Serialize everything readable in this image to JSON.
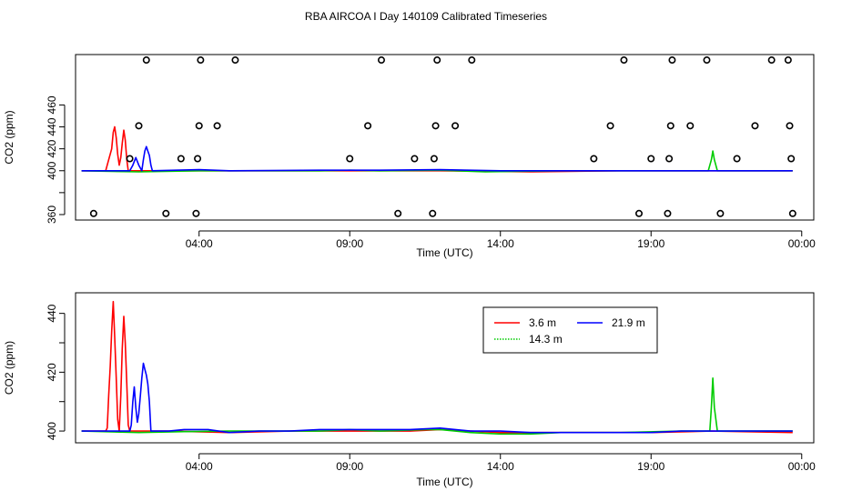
{
  "figure": {
    "title": "RBA AIRCOA I  Day 140109  Calibrated Timeseries"
  },
  "colors": {
    "3.6 m": "#ff0000",
    "14.3 m": "#00cc00",
    "21.9 m": "#0000ff",
    "flags": "#000000"
  },
  "chart_data": [
    {
      "type": "line",
      "title": "RBA AIRCOA I  Day 140109  Calibrated Timeseries",
      "xlabel": "Time (UTC)",
      "ylabel": "CO2 (ppm)",
      "x_unit": "hours since 00:00 UTC",
      "x_ticks": [
        4,
        9,
        14,
        19,
        24
      ],
      "x_tick_labels": [
        "04:00",
        "09:00",
        "14:00",
        "19:00",
        "00:00"
      ],
      "y_ticks": [
        360,
        380,
        400,
        420,
        440,
        460
      ],
      "y_tick_labels": [
        "360",
        "",
        "400",
        "420",
        "440",
        "460"
      ],
      "xlim": [
        -0.1,
        24.4
      ],
      "ylim": [
        355,
        506
      ],
      "legend": null,
      "series": [
        {
          "name": "3.6 m",
          "color": "#ff0000",
          "points": [
            [
              0.1,
              400
            ],
            [
              0.5,
              400
            ],
            [
              0.8,
              400
            ],
            [
              0.9,
              400
            ],
            [
              1.0,
              410
            ],
            [
              1.1,
              420
            ],
            [
              1.15,
              435
            ],
            [
              1.2,
              440
            ],
            [
              1.25,
              430
            ],
            [
              1.3,
              415
            ],
            [
              1.35,
              405
            ],
            [
              1.4,
              412
            ],
            [
              1.45,
              425
            ],
            [
              1.5,
              437
            ],
            [
              1.55,
              428
            ],
            [
              1.6,
              410
            ],
            [
              1.65,
              400
            ],
            [
              2.0,
              400
            ],
            [
              3.0,
              400
            ],
            [
              6.0,
              400
            ],
            [
              9.0,
              400
            ],
            [
              12.0,
              400
            ],
            [
              15.0,
              399
            ],
            [
              18.0,
              400
            ],
            [
              21.0,
              400
            ],
            [
              23.7,
              400
            ]
          ]
        },
        {
          "name": "14.3 m",
          "color": "#00cc00",
          "points": [
            [
              0.1,
              400
            ],
            [
              2.0,
              399
            ],
            [
              4.0,
              400
            ],
            [
              6.0,
              400
            ],
            [
              8.0,
              400
            ],
            [
              9.0,
              400.5
            ],
            [
              10.0,
              400
            ],
            [
              12.0,
              400.5
            ],
            [
              13.5,
              399
            ],
            [
              14.5,
              399.5
            ],
            [
              16.0,
              400
            ],
            [
              18.0,
              400
            ],
            [
              20.5,
              400
            ],
            [
              20.9,
              400
            ],
            [
              21.0,
              410
            ],
            [
              21.05,
              418
            ],
            [
              21.1,
              410
            ],
            [
              21.2,
              400
            ],
            [
              22.0,
              400
            ],
            [
              23.7,
              400
            ]
          ]
        },
        {
          "name": "21.9 m",
          "color": "#0000ff",
          "points": [
            [
              0.1,
              400
            ],
            [
              1.7,
              400
            ],
            [
              1.8,
              405
            ],
            [
              1.9,
              412
            ],
            [
              2.0,
              405
            ],
            [
              2.1,
              400
            ],
            [
              2.15,
              410
            ],
            [
              2.2,
              418
            ],
            [
              2.25,
              422
            ],
            [
              2.3,
              418
            ],
            [
              2.35,
              414
            ],
            [
              2.4,
              405
            ],
            [
              2.45,
              400
            ],
            [
              4.0,
              401
            ],
            [
              5.0,
              400
            ],
            [
              8.0,
              400.5
            ],
            [
              10.0,
              400.5
            ],
            [
              12.0,
              401
            ],
            [
              14.0,
              400
            ],
            [
              17.0,
              400
            ],
            [
              20.0,
              400
            ],
            [
              23.7,
              400
            ]
          ]
        }
      ],
      "annotations": "open circles (flagged/out-of-range points)",
      "flag_points": [
        [
          0.5,
          361
        ],
        [
          2.0,
          441
        ],
        [
          1.7,
          411
        ],
        [
          2.25,
          501
        ],
        [
          2.9,
          361
        ],
        [
          3.4,
          411
        ],
        [
          3.9,
          361
        ],
        [
          3.95,
          411
        ],
        [
          4.0,
          441
        ],
        [
          4.05,
          501
        ],
        [
          4.6,
          441
        ],
        [
          5.2,
          501
        ],
        [
          9.0,
          411
        ],
        [
          9.6,
          441
        ],
        [
          10.05,
          501
        ],
        [
          10.6,
          361
        ],
        [
          11.15,
          411
        ],
        [
          11.75,
          361
        ],
        [
          11.8,
          411
        ],
        [
          11.85,
          441
        ],
        [
          11.9,
          501
        ],
        [
          12.5,
          441
        ],
        [
          13.05,
          501
        ],
        [
          17.1,
          411
        ],
        [
          17.65,
          441
        ],
        [
          18.1,
          501
        ],
        [
          18.6,
          361
        ],
        [
          19.0,
          411
        ],
        [
          19.55,
          361
        ],
        [
          19.6,
          411
        ],
        [
          19.65,
          441
        ],
        [
          19.7,
          501
        ],
        [
          20.3,
          441
        ],
        [
          20.85,
          501
        ],
        [
          21.3,
          361
        ],
        [
          21.85,
          411
        ],
        [
          22.45,
          441
        ],
        [
          23.0,
          501
        ],
        [
          23.55,
          501
        ],
        [
          23.6,
          441
        ],
        [
          23.65,
          411
        ],
        [
          23.7,
          361
        ]
      ]
    },
    {
      "type": "line",
      "xlabel": "Time (UTC)",
      "ylabel": "CO2 (ppm)",
      "x_unit": "hours since 00:00 UTC",
      "x_ticks": [
        4,
        9,
        14,
        19,
        24
      ],
      "x_tick_labels": [
        "04:00",
        "09:00",
        "14:00",
        "19:00",
        "00:00"
      ],
      "y_ticks": [
        400,
        410,
        420,
        430,
        440
      ],
      "y_tick_labels": [
        "400",
        "",
        "420",
        "",
        "440"
      ],
      "xlim": [
        -0.1,
        24.4
      ],
      "ylim": [
        396,
        447
      ],
      "legend": {
        "placement": "top-right",
        "entries": [
          {
            "label": "3.6 m",
            "color": "#ff0000",
            "style": "solid"
          },
          {
            "label": "21.9 m",
            "color": "#0000ff",
            "style": "solid"
          },
          {
            "label": "14.3 m",
            "color": "#00cc00",
            "style": "dotted"
          }
        ]
      },
      "series": [
        {
          "name": "3.6 m",
          "color": "#ff0000",
          "points": [
            [
              0.1,
              400
            ],
            [
              0.5,
              400
            ],
            [
              0.9,
              400
            ],
            [
              0.95,
              401
            ],
            [
              1.0,
              412
            ],
            [
              1.05,
              422
            ],
            [
              1.1,
              434
            ],
            [
              1.15,
              444
            ],
            [
              1.2,
              432
            ],
            [
              1.25,
              418
            ],
            [
              1.3,
              404
            ],
            [
              1.35,
              400
            ],
            [
              1.4,
              412
            ],
            [
              1.45,
              428
            ],
            [
              1.5,
              439
            ],
            [
              1.55,
              430
            ],
            [
              1.6,
              416
            ],
            [
              1.65,
              402
            ],
            [
              1.7,
              400
            ],
            [
              2.0,
              400
            ],
            [
              3.0,
              400
            ],
            [
              5.0,
              399.5
            ],
            [
              7.0,
              400
            ],
            [
              9.0,
              400
            ],
            [
              11.0,
              400
            ],
            [
              12.0,
              400.5
            ],
            [
              13.0,
              400
            ],
            [
              14.0,
              399.5
            ],
            [
              15.0,
              399.5
            ],
            [
              17.0,
              399.5
            ],
            [
              19.0,
              399.5
            ],
            [
              21.0,
              400
            ],
            [
              23.7,
              399.5
            ]
          ]
        },
        {
          "name": "14.3 m",
          "color": "#00cc00",
          "points": [
            [
              0.1,
              400
            ],
            [
              2.0,
              399.5
            ],
            [
              3.5,
              399.8
            ],
            [
              5.0,
              400
            ],
            [
              7.0,
              400
            ],
            [
              8.0,
              400
            ],
            [
              9.0,
              400.5
            ],
            [
              10.0,
              400
            ],
            [
              11.5,
              400.5
            ],
            [
              12.0,
              400.5
            ],
            [
              13.0,
              399.5
            ],
            [
              14.0,
              399
            ],
            [
              15.0,
              399
            ],
            [
              16.0,
              399.5
            ],
            [
              18.0,
              399.5
            ],
            [
              20.0,
              400
            ],
            [
              20.95,
              400
            ],
            [
              21.0,
              408
            ],
            [
              21.05,
              418
            ],
            [
              21.1,
              408
            ],
            [
              21.2,
              400
            ],
            [
              22.0,
              400
            ],
            [
              23.7,
              400
            ]
          ]
        },
        {
          "name": "21.9 m",
          "color": "#0000ff",
          "points": [
            [
              0.1,
              400
            ],
            [
              1.7,
              400
            ],
            [
              1.75,
              402
            ],
            [
              1.8,
              410
            ],
            [
              1.85,
              415
            ],
            [
              1.9,
              408
            ],
            [
              1.95,
              403
            ],
            [
              2.0,
              406
            ],
            [
              2.05,
              412
            ],
            [
              2.1,
              418
            ],
            [
              2.15,
              423
            ],
            [
              2.2,
              421
            ],
            [
              2.25,
              419
            ],
            [
              2.3,
              416
            ],
            [
              2.35,
              410
            ],
            [
              2.4,
              400
            ],
            [
              3.0,
              400
            ],
            [
              3.5,
              400.5
            ],
            [
              4.0,
              400.5
            ],
            [
              4.3,
              400.5
            ],
            [
              5.0,
              399.5
            ],
            [
              6.0,
              400
            ],
            [
              7.0,
              400
            ],
            [
              8.0,
              400.5
            ],
            [
              9.0,
              400.5
            ],
            [
              10.0,
              400.5
            ],
            [
              11.0,
              400.5
            ],
            [
              12.0,
              401
            ],
            [
              12.5,
              400.5
            ],
            [
              13.0,
              400
            ],
            [
              14.0,
              400
            ],
            [
              15.0,
              399.5
            ],
            [
              16.0,
              399.5
            ],
            [
              17.0,
              399.5
            ],
            [
              18.0,
              399.5
            ],
            [
              19.0,
              399.5
            ],
            [
              20.0,
              400
            ],
            [
              21.0,
              400
            ],
            [
              22.0,
              400
            ],
            [
              23.7,
              400
            ]
          ]
        }
      ]
    }
  ]
}
